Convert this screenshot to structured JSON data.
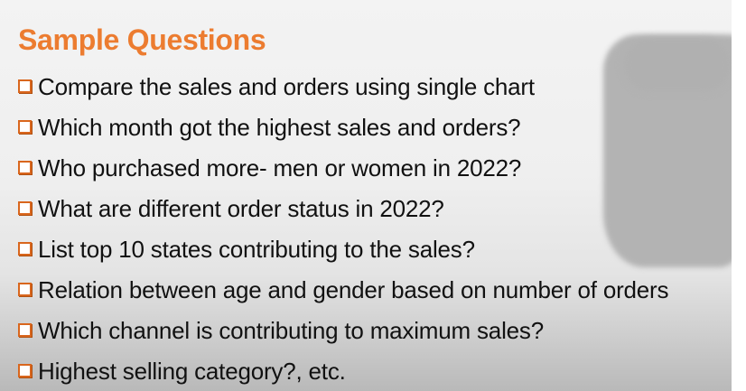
{
  "slide": {
    "title": "Sample Questions",
    "bullets": [
      "Compare the sales and orders using single chart",
      "Which month got the highest sales and orders?",
      "Who purchased more- men or women in 2022?",
      "What are different order status in 2022?",
      "List top 10 states contributing to the sales?",
      "Relation between age and gender based on number of orders",
      "Which channel is contributing to maximum sales?",
      "Highest selling category?, etc."
    ]
  },
  "colors": {
    "title": "#ec7c30",
    "bullet_box": "#d9661d",
    "text": "#111111"
  },
  "icons": {
    "bullet": "checkbox-bullet-icon"
  }
}
